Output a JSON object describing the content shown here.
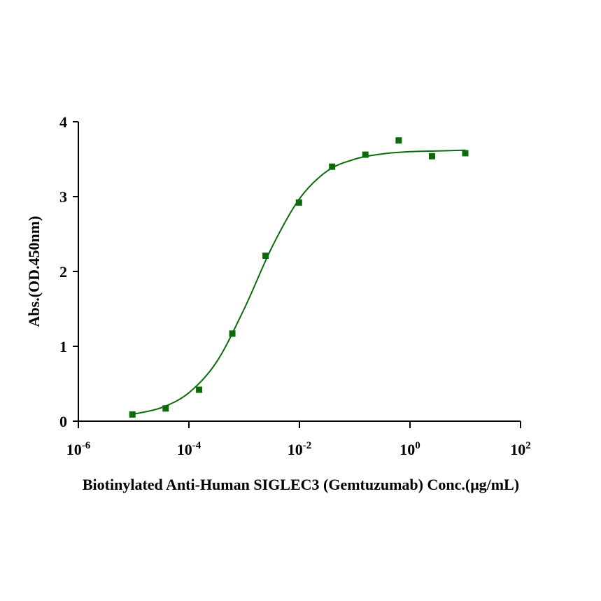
{
  "chart_data": {
    "type": "scatter",
    "x_label": "Biotinylated Anti-Human SIGLEC3 (Gemtuzumab) Conc.(μg/mL)",
    "y_label": "Abs.(OD.450nm)",
    "x_scale": "log",
    "xlim": [
      1e-06,
      100
    ],
    "xticks": [
      {
        "value": 1e-06,
        "label": "10-6"
      },
      {
        "value": 0.0001,
        "label": "10-4"
      },
      {
        "value": 0.01,
        "label": "10-2"
      },
      {
        "value": 1,
        "label": "100"
      },
      {
        "value": 100,
        "label": "102"
      }
    ],
    "ylim": [
      0,
      4
    ],
    "yticks": [
      0,
      1,
      2,
      3,
      4
    ],
    "series": [
      {
        "type": "scatter",
        "color": "#0b6b0b",
        "x": [
          9.5e-06,
          3.8e-05,
          0.000153,
          0.00061,
          0.00244,
          0.0098,
          0.039,
          0.156,
          0.625,
          2.5,
          10
        ],
        "values": [
          0.09,
          0.17,
          0.42,
          1.17,
          2.21,
          2.92,
          3.4,
          3.56,
          3.75,
          3.54,
          3.58
        ]
      },
      {
        "type": "line",
        "color": "#0b6b0b",
        "x": [
          1e-05,
          3.16e-05,
          0.0001,
          0.000316,
          0.001,
          0.00316,
          0.01,
          0.0316,
          0.1,
          0.316,
          1,
          3.16,
          10
        ],
        "values": [
          0.095,
          0.18,
          0.38,
          0.79,
          1.5,
          2.32,
          2.97,
          3.34,
          3.5,
          3.57,
          3.6,
          3.61,
          3.62
        ]
      }
    ]
  }
}
